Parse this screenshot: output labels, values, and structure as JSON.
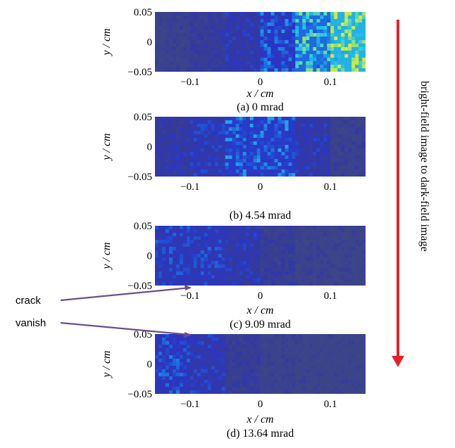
{
  "colors": {
    "colormap": [
      "#3d4587",
      "#34399e",
      "#2a35c6",
      "#1e58d8",
      "#1f9ee8",
      "#28c9e9",
      "#7fe087",
      "#d6e83a"
    ],
    "background": "#45468a",
    "arrow": "#e8202a",
    "pointer": "#6a4f8c"
  },
  "chart_data": [
    {
      "type": "heatmap",
      "caption": "(a) 0 mrad",
      "xlabel": "x / cm",
      "ylabel": "y / cm",
      "xlim": [
        -0.15,
        0.15
      ],
      "ylim": [
        -0.05,
        0.05
      ],
      "xticks": [
        -0.1,
        0,
        0.1
      ],
      "xtick_labels": [
        "−0.1",
        "0",
        "0.1"
      ],
      "yticks": [
        0.05,
        0,
        -0.05
      ],
      "ytick_labels": [
        "0.05",
        "0",
        "−0.05"
      ],
      "x_bands": [
        [
          -0.15,
          -0.1
        ],
        [
          -0.1,
          -0.05
        ],
        [
          -0.05,
          0
        ],
        [
          0,
          0.05
        ],
        [
          0.05,
          0.1
        ],
        [
          0.1,
          0.15
        ]
      ],
      "band_intensity": [
        0.05,
        0.12,
        0.22,
        0.38,
        0.62,
        0.85
      ]
    },
    {
      "type": "heatmap",
      "caption": "(b) 4.54 mrad",
      "xlabel": "",
      "ylabel": "y / cm",
      "xlim": [
        -0.15,
        0.15
      ],
      "ylim": [
        -0.05,
        0.05
      ],
      "xticks": [
        -0.1,
        0,
        0.1
      ],
      "xtick_labels": [
        "−0.1",
        "0",
        "0.1"
      ],
      "yticks": [
        0.05,
        0,
        -0.05
      ],
      "ytick_labels": [
        "0.05",
        "0",
        "−0.05"
      ],
      "x_bands": [
        [
          -0.15,
          -0.1
        ],
        [
          -0.1,
          -0.05
        ],
        [
          -0.05,
          0
        ],
        [
          0,
          0.05
        ],
        [
          0.05,
          0.1
        ],
        [
          0.1,
          0.15
        ]
      ],
      "band_intensity": [
        0.18,
        0.25,
        0.4,
        0.4,
        0.22,
        0.06
      ]
    },
    {
      "type": "heatmap",
      "caption": "(c) 9.09 mrad",
      "xlabel": "x / cm",
      "ylabel": "y / cm",
      "xlim": [
        -0.15,
        0.15
      ],
      "ylim": [
        -0.05,
        0.05
      ],
      "xticks": [
        -0.1,
        0,
        0.1
      ],
      "xtick_labels": [
        "−0.1",
        "0",
        "0.1"
      ],
      "yticks": [
        0.05,
        0,
        -0.05
      ],
      "ytick_labels": [
        "0.05",
        "0",
        "−0.05"
      ],
      "x_bands": [
        [
          -0.15,
          -0.1
        ],
        [
          -0.1,
          -0.05
        ],
        [
          -0.05,
          0
        ],
        [
          0,
          0.05
        ],
        [
          0.05,
          0.1
        ],
        [
          0.1,
          0.15
        ]
      ],
      "band_intensity": [
        0.3,
        0.3,
        0.22,
        0.1,
        0.04,
        0.02
      ]
    },
    {
      "type": "heatmap",
      "caption": "(d) 13.64 mrad",
      "xlabel": "x / cm",
      "ylabel": "y / cm",
      "xlim": [
        -0.15,
        0.15
      ],
      "ylim": [
        -0.05,
        0.05
      ],
      "xticks": [
        -0.1,
        0,
        0.1
      ],
      "xtick_labels": [
        "−0.1",
        "0",
        "0.1"
      ],
      "yticks": [
        0.05,
        0,
        -0.05
      ],
      "ytick_labels": [
        "0.05",
        "0",
        "−0.05"
      ],
      "x_bands": [
        [
          -0.15,
          -0.1
        ],
        [
          -0.1,
          -0.05
        ],
        [
          -0.05,
          0
        ],
        [
          0,
          0.05
        ],
        [
          0.05,
          0.1
        ],
        [
          0.1,
          0.15
        ]
      ],
      "band_intensity": [
        0.33,
        0.26,
        0.1,
        0.04,
        0.02,
        0.02
      ]
    }
  ],
  "annotations": {
    "crack_label": "crack",
    "vanish_label": "vanish",
    "arrow_label": "bright-field image to dark-field image"
  }
}
